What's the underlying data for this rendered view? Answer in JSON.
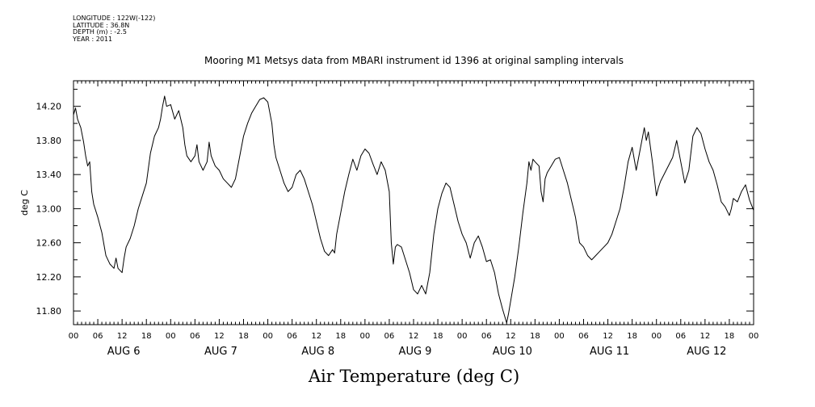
{
  "header": {
    "longitude": "LONGITUDE : 122W(-122)",
    "latitude": "LATITUDE : 36.8N",
    "depth": "DEPTH (m) : -2.5",
    "year": "YEAR : 2011"
  },
  "chart_title": "Mooring M1 Metsys data from MBARI instrument id 1396 at original sampling intervals",
  "xaxis_title": "Air Temperature (deg C)",
  "chart_data": {
    "type": "line",
    "title": "Mooring M1 Metsys data from MBARI instrument id 1396 at original sampling intervals",
    "xlabel": "Air Temperature (deg C)",
    "ylabel": "deg C",
    "x_units": "hours since AUG 6 00:00, 2011",
    "xlim": [
      0,
      168
    ],
    "ylim": [
      11.64,
      14.5
    ],
    "yticks": [
      "11.80",
      "12.20",
      "12.60",
      "13.00",
      "13.40",
      "13.80",
      "14.20"
    ],
    "ytick_values": [
      11.8,
      12.2,
      12.6,
      13.0,
      13.4,
      13.8,
      14.2
    ],
    "xtick_hour_labels": [
      "00",
      "06",
      "12",
      "18",
      "00",
      "06",
      "12",
      "18",
      "00",
      "06",
      "12",
      "18",
      "00",
      "06",
      "12",
      "18",
      "00",
      "06",
      "12",
      "18",
      "00",
      "06",
      "12",
      "18",
      "00",
      "06",
      "12",
      "18",
      "00"
    ],
    "day_labels": [
      "AUG  6",
      "AUG  7",
      "AUG  8",
      "AUG  9",
      "AUG 10",
      "AUG 11",
      "AUG 12"
    ],
    "grid": false,
    "series": [
      {
        "points": [
          [
            0,
            14.1
          ],
          [
            0.5,
            14.18
          ],
          [
            1,
            14.05
          ],
          [
            1.8,
            13.95
          ],
          [
            2.5,
            13.78
          ],
          [
            3,
            13.62
          ],
          [
            3.5,
            13.5
          ],
          [
            4,
            13.55
          ],
          [
            4.5,
            13.2
          ],
          [
            5,
            13.05
          ],
          [
            6,
            12.9
          ],
          [
            7,
            12.72
          ],
          [
            8,
            12.45
          ],
          [
            9,
            12.35
          ],
          [
            10,
            12.3
          ],
          [
            10.5,
            12.42
          ],
          [
            11,
            12.3
          ],
          [
            12,
            12.25
          ],
          [
            12.5,
            12.42
          ],
          [
            13,
            12.55
          ],
          [
            14,
            12.65
          ],
          [
            15,
            12.8
          ],
          [
            16,
            13.0
          ],
          [
            17,
            13.15
          ],
          [
            18,
            13.3
          ],
          [
            19,
            13.65
          ],
          [
            20,
            13.85
          ],
          [
            21,
            13.95
          ],
          [
            21.5,
            14.05
          ],
          [
            22,
            14.2
          ],
          [
            22.5,
            14.32
          ],
          [
            23,
            14.2
          ],
          [
            24,
            14.22
          ],
          [
            25,
            14.05
          ],
          [
            26,
            14.15
          ],
          [
            27,
            13.95
          ],
          [
            27.5,
            13.75
          ],
          [
            28,
            13.62
          ],
          [
            29,
            13.55
          ],
          [
            30,
            13.62
          ],
          [
            30.5,
            13.75
          ],
          [
            31,
            13.55
          ],
          [
            32,
            13.45
          ],
          [
            33,
            13.55
          ],
          [
            33.5,
            13.78
          ],
          [
            34,
            13.62
          ],
          [
            35,
            13.5
          ],
          [
            36,
            13.45
          ],
          [
            37,
            13.35
          ],
          [
            38,
            13.3
          ],
          [
            39,
            13.25
          ],
          [
            40,
            13.35
          ],
          [
            41,
            13.6
          ],
          [
            42,
            13.85
          ],
          [
            43,
            14.0
          ],
          [
            44,
            14.12
          ],
          [
            45,
            14.2
          ],
          [
            46,
            14.28
          ],
          [
            47,
            14.3
          ],
          [
            48,
            14.25
          ],
          [
            49,
            14.0
          ],
          [
            49.5,
            13.75
          ],
          [
            50,
            13.6
          ],
          [
            51,
            13.45
          ],
          [
            52,
            13.3
          ],
          [
            53,
            13.2
          ],
          [
            54,
            13.25
          ],
          [
            55,
            13.4
          ],
          [
            56,
            13.45
          ],
          [
            57,
            13.35
          ],
          [
            58,
            13.2
          ],
          [
            59,
            13.05
          ],
          [
            60,
            12.85
          ],
          [
            61,
            12.65
          ],
          [
            62,
            12.5
          ],
          [
            63,
            12.45
          ],
          [
            64,
            12.52
          ],
          [
            64.5,
            12.48
          ],
          [
            65,
            12.7
          ],
          [
            66,
            12.95
          ],
          [
            67,
            13.2
          ],
          [
            68,
            13.4
          ],
          [
            69,
            13.58
          ],
          [
            70,
            13.45
          ],
          [
            71,
            13.62
          ],
          [
            72,
            13.7
          ],
          [
            73,
            13.65
          ],
          [
            74,
            13.52
          ],
          [
            75,
            13.4
          ],
          [
            76,
            13.55
          ],
          [
            77,
            13.45
          ],
          [
            78,
            13.2
          ],
          [
            78.5,
            12.6
          ],
          [
            79,
            12.35
          ],
          [
            79.5,
            12.55
          ],
          [
            80,
            12.58
          ],
          [
            81,
            12.55
          ],
          [
            82,
            12.4
          ],
          [
            83,
            12.25
          ],
          [
            84,
            12.05
          ],
          [
            85,
            12.0
          ],
          [
            86,
            12.1
          ],
          [
            87,
            12.0
          ],
          [
            88,
            12.25
          ],
          [
            89,
            12.7
          ],
          [
            90,
            13.0
          ],
          [
            91,
            13.18
          ],
          [
            92,
            13.3
          ],
          [
            93,
            13.25
          ],
          [
            94,
            13.05
          ],
          [
            95,
            12.85
          ],
          [
            96,
            12.7
          ],
          [
            97,
            12.6
          ],
          [
            98,
            12.42
          ],
          [
            99,
            12.6
          ],
          [
            100,
            12.68
          ],
          [
            101,
            12.55
          ],
          [
            102,
            12.38
          ],
          [
            103,
            12.4
          ],
          [
            104,
            12.25
          ],
          [
            105,
            12.0
          ],
          [
            106,
            11.82
          ],
          [
            107,
            11.66
          ],
          [
            107.5,
            11.78
          ],
          [
            108,
            11.92
          ],
          [
            109,
            12.2
          ],
          [
            110,
            12.55
          ],
          [
            111,
            12.95
          ],
          [
            112,
            13.3
          ],
          [
            112.5,
            13.55
          ],
          [
            113,
            13.45
          ],
          [
            113.5,
            13.58
          ],
          [
            114,
            13.55
          ],
          [
            115,
            13.5
          ],
          [
            115.5,
            13.2
          ],
          [
            116,
            13.08
          ],
          [
            116.5,
            13.35
          ],
          [
            117,
            13.42
          ],
          [
            118,
            13.5
          ],
          [
            119,
            13.58
          ],
          [
            120,
            13.6
          ],
          [
            121,
            13.45
          ],
          [
            122,
            13.3
          ],
          [
            123,
            13.1
          ],
          [
            124,
            12.9
          ],
          [
            125,
            12.6
          ],
          [
            126,
            12.55
          ],
          [
            127,
            12.45
          ],
          [
            128,
            12.4
          ],
          [
            129,
            12.45
          ],
          [
            130,
            12.5
          ],
          [
            131,
            12.55
          ],
          [
            132,
            12.6
          ],
          [
            133,
            12.7
          ],
          [
            134,
            12.85
          ],
          [
            135,
            13.0
          ],
          [
            136,
            13.25
          ],
          [
            137,
            13.55
          ],
          [
            138,
            13.72
          ],
          [
            139,
            13.45
          ],
          [
            140,
            13.7
          ],
          [
            141,
            13.95
          ],
          [
            141.5,
            13.8
          ],
          [
            142,
            13.9
          ],
          [
            143,
            13.55
          ],
          [
            144,
            13.15
          ],
          [
            144.5,
            13.25
          ],
          [
            145,
            13.32
          ],
          [
            148,
            13.6
          ],
          [
            149,
            13.8
          ],
          [
            150,
            13.55
          ],
          [
            151,
            13.3
          ],
          [
            152,
            13.45
          ],
          [
            153,
            13.85
          ],
          [
            154,
            13.95
          ],
          [
            155,
            13.88
          ],
          [
            156,
            13.7
          ],
          [
            157,
            13.55
          ],
          [
            158,
            13.45
          ],
          [
            159,
            13.28
          ],
          [
            160,
            13.08
          ],
          [
            161,
            13.02
          ],
          [
            162,
            12.92
          ],
          [
            162.5,
            13.0
          ],
          [
            163,
            13.12
          ],
          [
            164,
            13.08
          ],
          [
            165,
            13.2
          ],
          [
            166,
            13.28
          ],
          [
            167,
            13.1
          ],
          [
            168,
            12.98
          ]
        ]
      }
    ]
  }
}
